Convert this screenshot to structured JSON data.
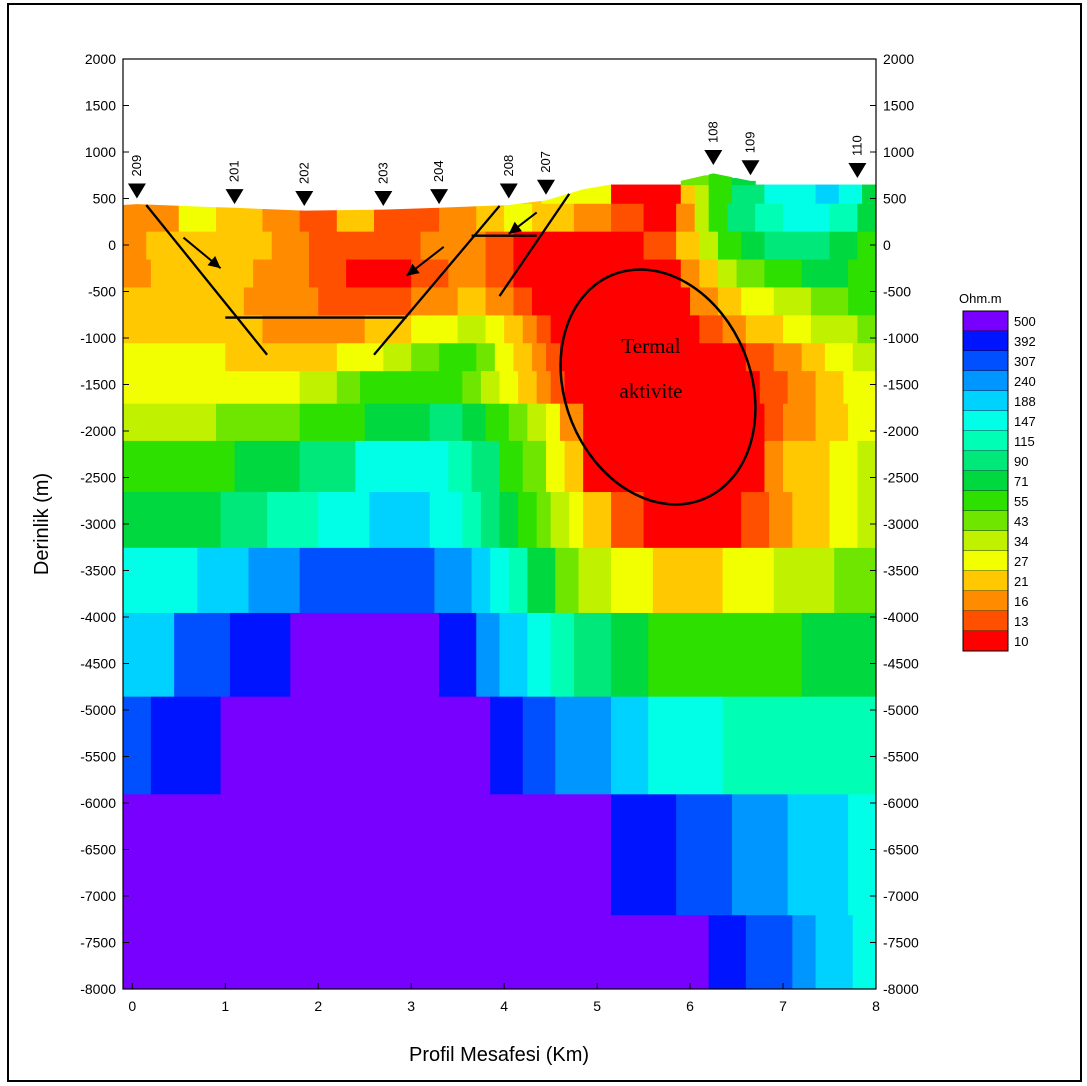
{
  "chart_data": {
    "type": "heatmap",
    "xlabel": "Profil Mesafesi (Km)",
    "ylabel": "Derinlik (m)",
    "xlim": [
      -0.1,
      8
    ],
    "ylim": [
      -8000,
      2000
    ],
    "x_ticks": [
      "0",
      "1",
      "2",
      "3",
      "4",
      "5",
      "6",
      "7",
      "8"
    ],
    "y_ticks": [
      "2000",
      "1500",
      "1000",
      "500",
      "0",
      "-500",
      "-1000",
      "-1500",
      "-2000",
      "-2500",
      "-3000",
      "-3500",
      "-4000",
      "-4500",
      "-5000",
      "-5500",
      "-6000",
      "-6500",
      "-7000",
      "-7500",
      "-8000"
    ],
    "legend": {
      "title": "Ohm.m",
      "levels": [
        "500",
        "392",
        "307",
        "240",
        "188",
        "147",
        "115",
        "90",
        "71",
        "55",
        "43",
        "34",
        "27",
        "21",
        "16",
        "13",
        "10"
      ]
    },
    "stations": [
      {
        "name": "209",
        "x": 0.05,
        "elev": 500
      },
      {
        "name": "201",
        "x": 1.1,
        "elev": 440
      },
      {
        "name": "202",
        "x": 1.85,
        "elev": 420
      },
      {
        "name": "203",
        "x": 2.7,
        "elev": 420
      },
      {
        "name": "204",
        "x": 3.3,
        "elev": 440
      },
      {
        "name": "208",
        "x": 4.05,
        "elev": 500
      },
      {
        "name": "207",
        "x": 4.45,
        "elev": 540
      },
      {
        "name": "108",
        "x": 6.25,
        "elev": 860
      },
      {
        "name": "109",
        "x": 6.65,
        "elev": 750
      },
      {
        "name": "110",
        "x": 7.8,
        "elev": 720
      }
    ],
    "annotation": {
      "line1": "Termal",
      "line2": "aktivite"
    },
    "colors": {
      "v10": "#ff0000",
      "v13": "#ff5000",
      "v16": "#ff8c00",
      "v21": "#ffc800",
      "v27": "#f2ff00",
      "v34": "#c0f200",
      "v43": "#6ee600",
      "v55": "#2ee000",
      "v71": "#00d840",
      "v90": "#00e87a",
      "v115": "#00ffb4",
      "v147": "#00ffe6",
      "v188": "#00d2ff",
      "v240": "#0096ff",
      "v307": "#0050ff",
      "v392": "#0014ff",
      "v500": "#7800ff"
    }
  }
}
